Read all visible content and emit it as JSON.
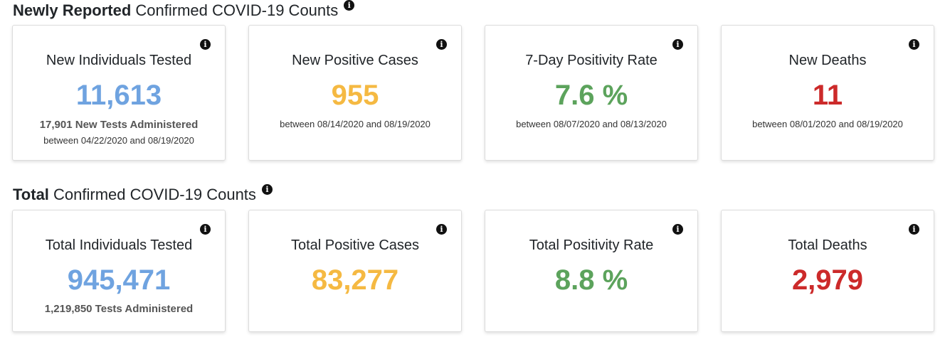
{
  "colors": {
    "tested": "#6fa3e0",
    "positive": "#f5b942",
    "positivity": "#5ca35c",
    "deaths": "#cc2a2a"
  },
  "icons": {
    "info": "info-circle-icon",
    "info_glyph": "i"
  },
  "new_section": {
    "heading_bold": "Newly Reported",
    "heading_rest": " Confirmed COVID-19 Counts",
    "cards": {
      "tested": {
        "title": "New Individuals Tested",
        "value": "11,613",
        "sub": "17,901 New Tests Administered",
        "range": "between 04/22/2020 and 08/19/2020"
      },
      "positive": {
        "title": "New Positive Cases",
        "value": "955",
        "range": "between 08/14/2020 and 08/19/2020"
      },
      "positivity": {
        "title": "7-Day Positivity Rate",
        "value": "7.6 %",
        "range": "between 08/07/2020 and 08/13/2020"
      },
      "deaths": {
        "title": "New Deaths",
        "value": "11",
        "range": "between 08/01/2020 and 08/19/2020"
      }
    }
  },
  "total_section": {
    "heading_bold": "Total",
    "heading_rest": " Confirmed COVID-19 Counts",
    "cards": {
      "tested": {
        "title": "Total Individuals Tested",
        "value": "945,471",
        "sub": "1,219,850 Tests Administered"
      },
      "positive": {
        "title": "Total Positive Cases",
        "value": "83,277"
      },
      "positivity": {
        "title": "Total Positivity Rate",
        "value": "8.8 %"
      },
      "deaths": {
        "title": "Total Deaths",
        "value": "2,979"
      }
    }
  }
}
